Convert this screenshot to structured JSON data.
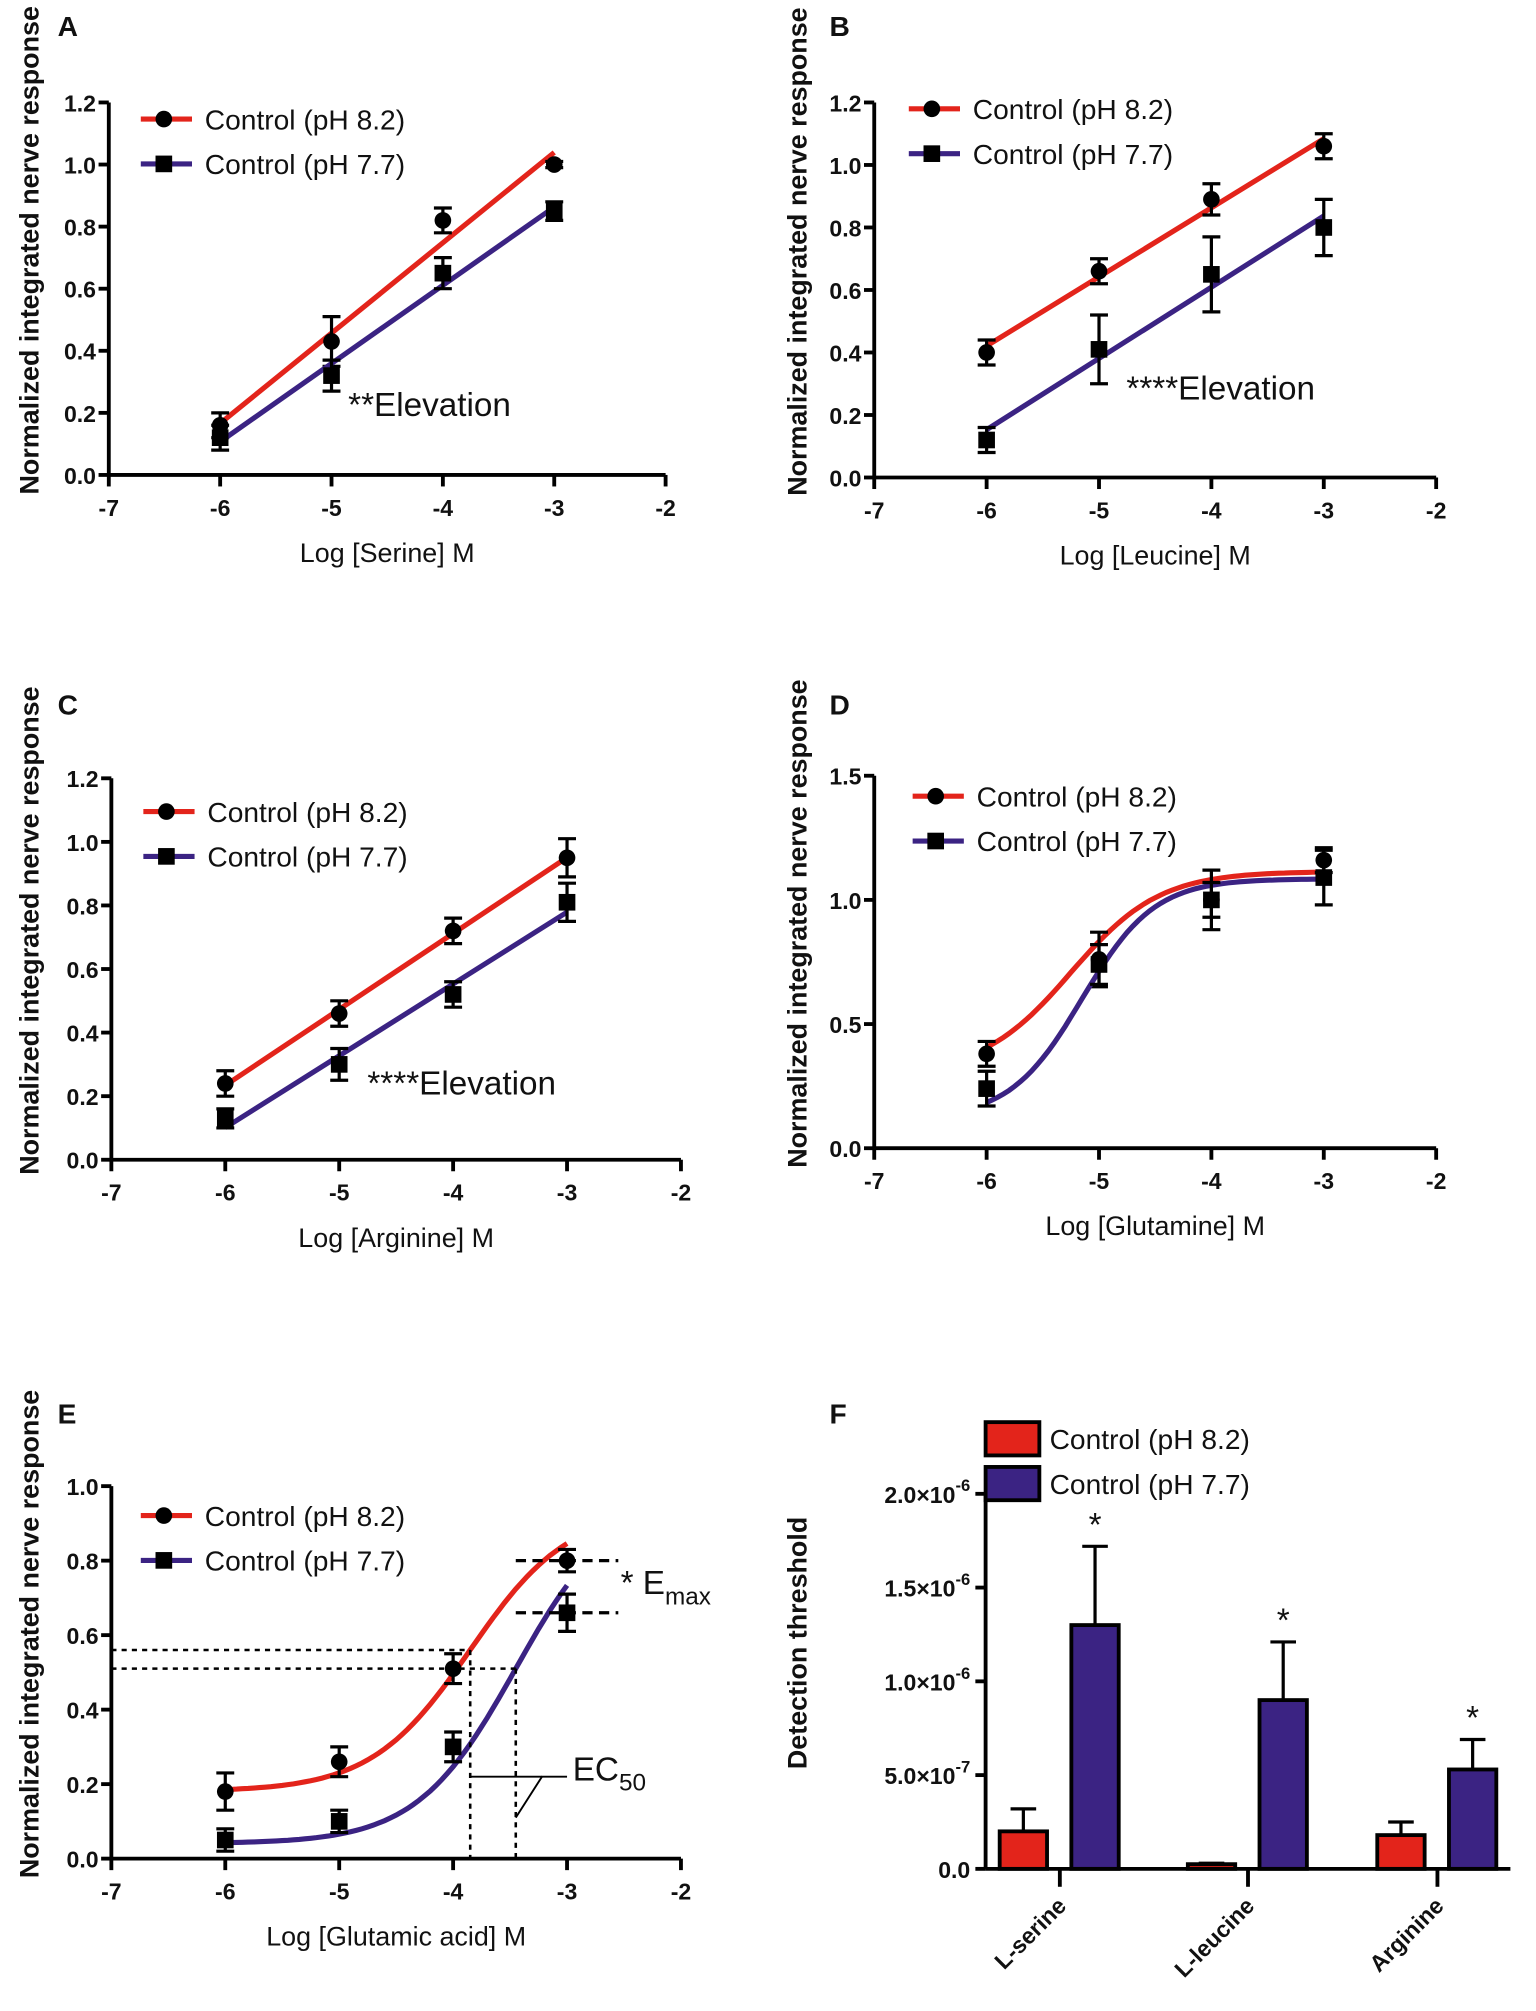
{
  "colors": {
    "ph82": "#e3241b",
    "ph77": "#3b2383",
    "axis": "#000000"
  },
  "chart_data": [
    {
      "panel": "A",
      "type": "line",
      "xlabel": "Log [Serine] M",
      "ylabel": "Normalized integrated nerve response",
      "xlim": [
        -7,
        -2
      ],
      "ylim": [
        0,
        1.2
      ],
      "xticks": [
        "-7",
        "-6",
        "-5",
        "-4",
        "-3",
        "-2"
      ],
      "yticks": [
        "0.0",
        "0.2",
        "0.4",
        "0.6",
        "0.8",
        "1.0",
        "1.2"
      ],
      "annotation": "**Elevation",
      "fit": "linear",
      "series": [
        {
          "name": "Control (pH 8.2)",
          "marker": "circle",
          "x": [
            -6,
            -5,
            -4,
            -3
          ],
          "y": [
            0.16,
            0.43,
            0.82,
            1.0
          ],
          "err": [
            0.04,
            0.08,
            0.04,
            0.01
          ]
        },
        {
          "name": "Control (pH 7.7)",
          "marker": "square",
          "x": [
            -6,
            -5,
            -4,
            -3
          ],
          "y": [
            0.12,
            0.32,
            0.65,
            0.85
          ],
          "err": [
            0.04,
            0.05,
            0.05,
            0.03
          ]
        }
      ]
    },
    {
      "panel": "B",
      "type": "line",
      "xlabel": "Log [Leucine] M",
      "ylabel": "Normalized integrated nerve response",
      "xlim": [
        -7,
        -2
      ],
      "ylim": [
        0,
        1.2
      ],
      "xticks": [
        "-7",
        "-6",
        "-5",
        "-4",
        "-3",
        "-2"
      ],
      "yticks": [
        "0.0",
        "0.2",
        "0.4",
        "0.6",
        "0.8",
        "1.0",
        "1.2"
      ],
      "annotation": "****Elevation",
      "fit": "linear",
      "series": [
        {
          "name": "Control (pH 8.2)",
          "marker": "circle",
          "x": [
            -6,
            -5,
            -4,
            -3
          ],
          "y": [
            0.4,
            0.66,
            0.89,
            1.06
          ],
          "err": [
            0.04,
            0.04,
            0.05,
            0.04
          ]
        },
        {
          "name": "Control (pH 7.7)",
          "marker": "square",
          "x": [
            -6,
            -5,
            -4,
            -3
          ],
          "y": [
            0.12,
            0.41,
            0.65,
            0.8
          ],
          "err": [
            0.04,
            0.11,
            0.12,
            0.09
          ]
        }
      ]
    },
    {
      "panel": "C",
      "type": "line",
      "xlabel": "Log [Arginine] M",
      "ylabel": "Normalized integrated nerve response",
      "xlim": [
        -7,
        -2
      ],
      "ylim": [
        0,
        1.2
      ],
      "xticks": [
        "-7",
        "-6",
        "-5",
        "-4",
        "-3",
        "-2"
      ],
      "yticks": [
        "0.0",
        "0.2",
        "0.4",
        "0.6",
        "0.8",
        "1.0",
        "1.2"
      ],
      "annotation": "****Elevation",
      "fit": "linear",
      "series": [
        {
          "name": "Control (pH 8.2)",
          "marker": "circle",
          "x": [
            -6,
            -5,
            -4,
            -3
          ],
          "y": [
            0.24,
            0.46,
            0.72,
            0.95
          ],
          "err": [
            0.04,
            0.04,
            0.04,
            0.06
          ]
        },
        {
          "name": "Control (pH 7.7)",
          "marker": "square",
          "x": [
            -6,
            -5,
            -4,
            -3
          ],
          "y": [
            0.13,
            0.3,
            0.52,
            0.81
          ],
          "err": [
            0.03,
            0.05,
            0.04,
            0.06
          ]
        }
      ]
    },
    {
      "panel": "D",
      "type": "line",
      "xlabel": "Log [Glutamine] M",
      "ylabel": "Normalized integrated nerve response",
      "xlim": [
        -7,
        -2
      ],
      "ylim": [
        0,
        1.5
      ],
      "xticks": [
        "-7",
        "-6",
        "-5",
        "-4",
        "-3",
        "-2"
      ],
      "yticks": [
        "0.0",
        "0.5",
        "1.0",
        "1.5"
      ],
      "annotation": "",
      "fit": "sigmoid",
      "series": [
        {
          "name": "Control (pH 8.2)",
          "marker": "circle",
          "x": [
            -6,
            -5,
            -4,
            -3
          ],
          "y": [
            0.38,
            0.76,
            1.0,
            1.16
          ],
          "err": [
            0.05,
            0.11,
            0.12,
            0.05
          ]
        },
        {
          "name": "Control (pH 7.7)",
          "marker": "square",
          "x": [
            -6,
            -5,
            -4,
            -3
          ],
          "y": [
            0.24,
            0.74,
            1.0,
            1.09
          ],
          "err": [
            0.07,
            0.08,
            0.07,
            0.11
          ]
        }
      ]
    },
    {
      "panel": "E",
      "type": "line",
      "xlabel": "Log [Glutamic acid] M",
      "ylabel": "Normalized integrated nerve response",
      "xlim": [
        -7,
        -2
      ],
      "ylim": [
        0,
        1.0
      ],
      "xticks": [
        "-7",
        "-6",
        "-5",
        "-4",
        "-3",
        "-2"
      ],
      "yticks": [
        "0.0",
        "0.2",
        "0.4",
        "0.6",
        "0.8",
        "1.0"
      ],
      "annotation": "",
      "fit": "sigmoid",
      "emax_label": {
        "prefix": "* E",
        "sub": "max"
      },
      "ec50_label": {
        "prefix": "EC",
        "sub": "50"
      },
      "ec50_log": [
        -3.85,
        -3.45
      ],
      "series": [
        {
          "name": "Control (pH 8.2)",
          "marker": "circle",
          "x": [
            -6,
            -5,
            -4,
            -3
          ],
          "y": [
            0.18,
            0.26,
            0.51,
            0.8
          ],
          "err": [
            0.05,
            0.04,
            0.04,
            0.03
          ]
        },
        {
          "name": "Control (pH 7.7)",
          "marker": "square",
          "x": [
            -6,
            -5,
            -4,
            -3
          ],
          "y": [
            0.05,
            0.1,
            0.3,
            0.66
          ],
          "err": [
            0.03,
            0.03,
            0.04,
            0.05
          ]
        }
      ]
    },
    {
      "panel": "F",
      "type": "bar",
      "ylabel": "Detection threshold",
      "ylim": [
        0,
        2e-06
      ],
      "yticks": [
        {
          "base": "0.0",
          "exp": ""
        },
        {
          "base": "5.0×10",
          "exp": "-7"
        },
        {
          "base": "1.0×10",
          "exp": "-6"
        },
        {
          "base": "1.5×10",
          "exp": "-6"
        },
        {
          "base": "2.0×10",
          "exp": "-6"
        }
      ],
      "categories": [
        "L-serine",
        "L-leucine",
        "Arginine"
      ],
      "significance": [
        "*",
        "*",
        "*"
      ],
      "series": [
        {
          "name": "Control (pH 8.2)",
          "values": [
            2e-07,
            2.5e-08,
            1.8e-07
          ],
          "err": [
            1.2e-07,
            5e-09,
            7e-08
          ]
        },
        {
          "name": "Control (pH 7.7)",
          "values": [
            1.3e-06,
            9e-07,
            5.3e-07
          ],
          "err": [
            4.2e-07,
            3.1e-07,
            1.6e-07
          ]
        }
      ]
    }
  ]
}
